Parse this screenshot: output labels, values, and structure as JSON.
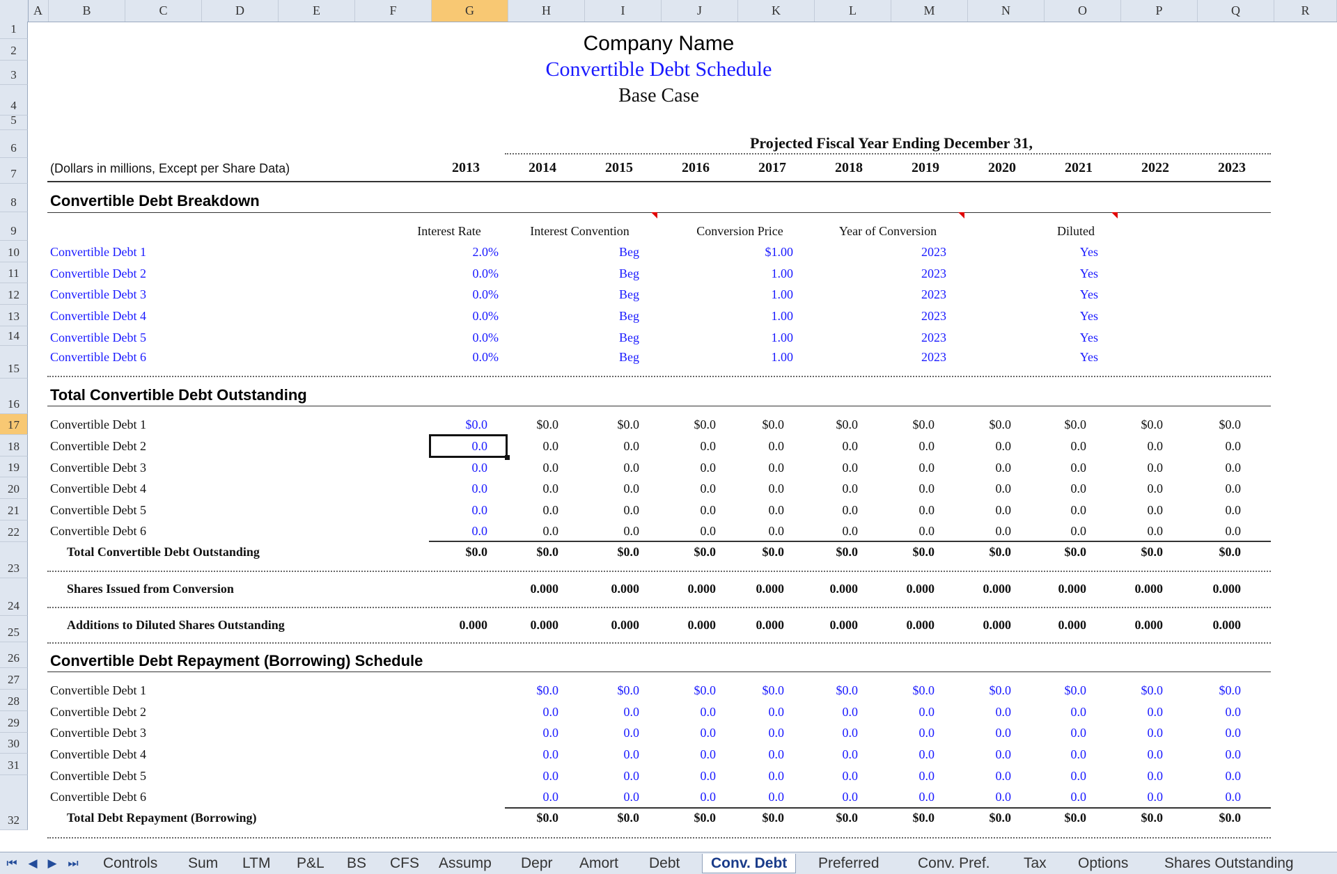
{
  "columns": [
    "A",
    "B",
    "C",
    "D",
    "E",
    "F",
    "G",
    "H",
    "I",
    "J",
    "K",
    "L",
    "M",
    "N",
    "O",
    "P",
    "Q",
    "R"
  ],
  "selected_column": "G",
  "rows": [
    "1",
    "2",
    "3",
    "4",
    "5",
    "6",
    "7",
    "8",
    "9",
    "10",
    "11",
    "12",
    "13",
    "14",
    "15",
    "16",
    "17",
    "18",
    "19",
    "20",
    "21",
    "22",
    "23",
    "24",
    "25",
    "26",
    "27",
    "28",
    "29",
    "30",
    "31",
    "32"
  ],
  "selected_row": "17",
  "header": {
    "company": "Company Name",
    "title": "Convertible Debt Schedule",
    "case": "Base Case",
    "projected": "Projected Fiscal Year Ending December 31,",
    "units": "(Dollars in millions, Except per Share Data)",
    "years": [
      "2013",
      "2014",
      "2015",
      "2016",
      "2017",
      "2018",
      "2019",
      "2020",
      "2021",
      "2022",
      "2023"
    ]
  },
  "breakdown": {
    "title": "Convertible Debt Breakdown",
    "headers": {
      "interest_rate": "Interest Rate",
      "interest_convention": "Interest Convention",
      "conversion_price": "Conversion Price",
      "year_of_conversion": "Year of Conversion",
      "diluted": "Diluted"
    },
    "rows": [
      {
        "label": "Convertible Debt 1",
        "rate": "2.0%",
        "convention": "Beg",
        "price": "$1.00",
        "year": "2023",
        "diluted": "Yes"
      },
      {
        "label": "Convertible Debt 2",
        "rate": "0.0%",
        "convention": "Beg",
        "price": "1.00",
        "year": "2023",
        "diluted": "Yes"
      },
      {
        "label": "Convertible Debt 3",
        "rate": "0.0%",
        "convention": "Beg",
        "price": "1.00",
        "year": "2023",
        "diluted": "Yes"
      },
      {
        "label": "Convertible Debt 4",
        "rate": "0.0%",
        "convention": "Beg",
        "price": "1.00",
        "year": "2023",
        "diluted": "Yes"
      },
      {
        "label": "Convertible Debt 5",
        "rate": "0.0%",
        "convention": "Beg",
        "price": "1.00",
        "year": "2023",
        "diluted": "Yes"
      },
      {
        "label": "Convertible Debt 6",
        "rate": "0.0%",
        "convention": "Beg",
        "price": "1.00",
        "year": "2023",
        "diluted": "Yes"
      }
    ]
  },
  "outstanding": {
    "title": "Total Convertible Debt Outstanding",
    "rows": [
      {
        "label": "Convertible Debt 1",
        "values": [
          "$0.0",
          "$0.0",
          "$0.0",
          "$0.0",
          "$0.0",
          "$0.0",
          "$0.0",
          "$0.0",
          "$0.0",
          "$0.0",
          "$0.0"
        ]
      },
      {
        "label": "Convertible Debt 2",
        "values": [
          "0.0",
          "0.0",
          "0.0",
          "0.0",
          "0.0",
          "0.0",
          "0.0",
          "0.0",
          "0.0",
          "0.0",
          "0.0"
        ]
      },
      {
        "label": "Convertible Debt 3",
        "values": [
          "0.0",
          "0.0",
          "0.0",
          "0.0",
          "0.0",
          "0.0",
          "0.0",
          "0.0",
          "0.0",
          "0.0",
          "0.0"
        ]
      },
      {
        "label": "Convertible Debt 4",
        "values": [
          "0.0",
          "0.0",
          "0.0",
          "0.0",
          "0.0",
          "0.0",
          "0.0",
          "0.0",
          "0.0",
          "0.0",
          "0.0"
        ]
      },
      {
        "label": "Convertible Debt 5",
        "values": [
          "0.0",
          "0.0",
          "0.0",
          "0.0",
          "0.0",
          "0.0",
          "0.0",
          "0.0",
          "0.0",
          "0.0",
          "0.0"
        ]
      },
      {
        "label": "Convertible Debt 6",
        "values": [
          "0.0",
          "0.0",
          "0.0",
          "0.0",
          "0.0",
          "0.0",
          "0.0",
          "0.0",
          "0.0",
          "0.0",
          "0.0"
        ]
      }
    ],
    "total_label": "Total Convertible Debt Outstanding",
    "total_values": [
      "$0.0",
      "$0.0",
      "$0.0",
      "$0.0",
      "$0.0",
      "$0.0",
      "$0.0",
      "$0.0",
      "$0.0",
      "$0.0",
      "$0.0"
    ],
    "shares_label": "Shares Issued from Conversion",
    "shares_values": [
      "",
      "0.000",
      "0.000",
      "0.000",
      "0.000",
      "0.000",
      "0.000",
      "0.000",
      "0.000",
      "0.000",
      "0.000"
    ],
    "additions_label": "Additions to Diluted Shares Outstanding",
    "additions_values": [
      "0.000",
      "0.000",
      "0.000",
      "0.000",
      "0.000",
      "0.000",
      "0.000",
      "0.000",
      "0.000",
      "0.000",
      "0.000"
    ]
  },
  "repayment": {
    "title": "Convertible Debt Repayment (Borrowing) Schedule",
    "rows": [
      {
        "label": "Convertible Debt 1",
        "values": [
          "",
          "$0.0",
          "$0.0",
          "$0.0",
          "$0.0",
          "$0.0",
          "$0.0",
          "$0.0",
          "$0.0",
          "$0.0",
          "$0.0"
        ]
      },
      {
        "label": "Convertible Debt 2",
        "values": [
          "",
          "0.0",
          "0.0",
          "0.0",
          "0.0",
          "0.0",
          "0.0",
          "0.0",
          "0.0",
          "0.0",
          "0.0"
        ]
      },
      {
        "label": "Convertible Debt 3",
        "values": [
          "",
          "0.0",
          "0.0",
          "0.0",
          "0.0",
          "0.0",
          "0.0",
          "0.0",
          "0.0",
          "0.0",
          "0.0"
        ]
      },
      {
        "label": "Convertible Debt 4",
        "values": [
          "",
          "0.0",
          "0.0",
          "0.0",
          "0.0",
          "0.0",
          "0.0",
          "0.0",
          "0.0",
          "0.0",
          "0.0"
        ]
      },
      {
        "label": "Convertible Debt 5",
        "values": [
          "",
          "0.0",
          "0.0",
          "0.0",
          "0.0",
          "0.0",
          "0.0",
          "0.0",
          "0.0",
          "0.0",
          "0.0"
        ]
      },
      {
        "label": "Convertible Debt 6",
        "values": [
          "",
          "0.0",
          "0.0",
          "0.0",
          "0.0",
          "0.0",
          "0.0",
          "0.0",
          "0.0",
          "0.0",
          "0.0"
        ]
      }
    ],
    "total_label": "Total Debt Repayment (Borrowing)",
    "total_values": [
      "",
      "$0.0",
      "$0.0",
      "$0.0",
      "$0.0",
      "$0.0",
      "$0.0",
      "$0.0",
      "$0.0",
      "$0.0",
      "$0.0"
    ]
  },
  "sheet_tabs": [
    "Controls",
    "Sum",
    "LTM",
    "P&L",
    "BS",
    "CFS",
    "Assump",
    "Depr",
    "Amort",
    "Debt",
    "Conv. Debt",
    "Preferred",
    "Conv. Pref.",
    "Tax",
    "Options",
    "Shares Outstanding"
  ],
  "active_tab": "Conv. Debt",
  "nav_icons": [
    "first-sheet-icon",
    "prev-sheet-icon",
    "next-sheet-icon",
    "last-sheet-icon"
  ]
}
